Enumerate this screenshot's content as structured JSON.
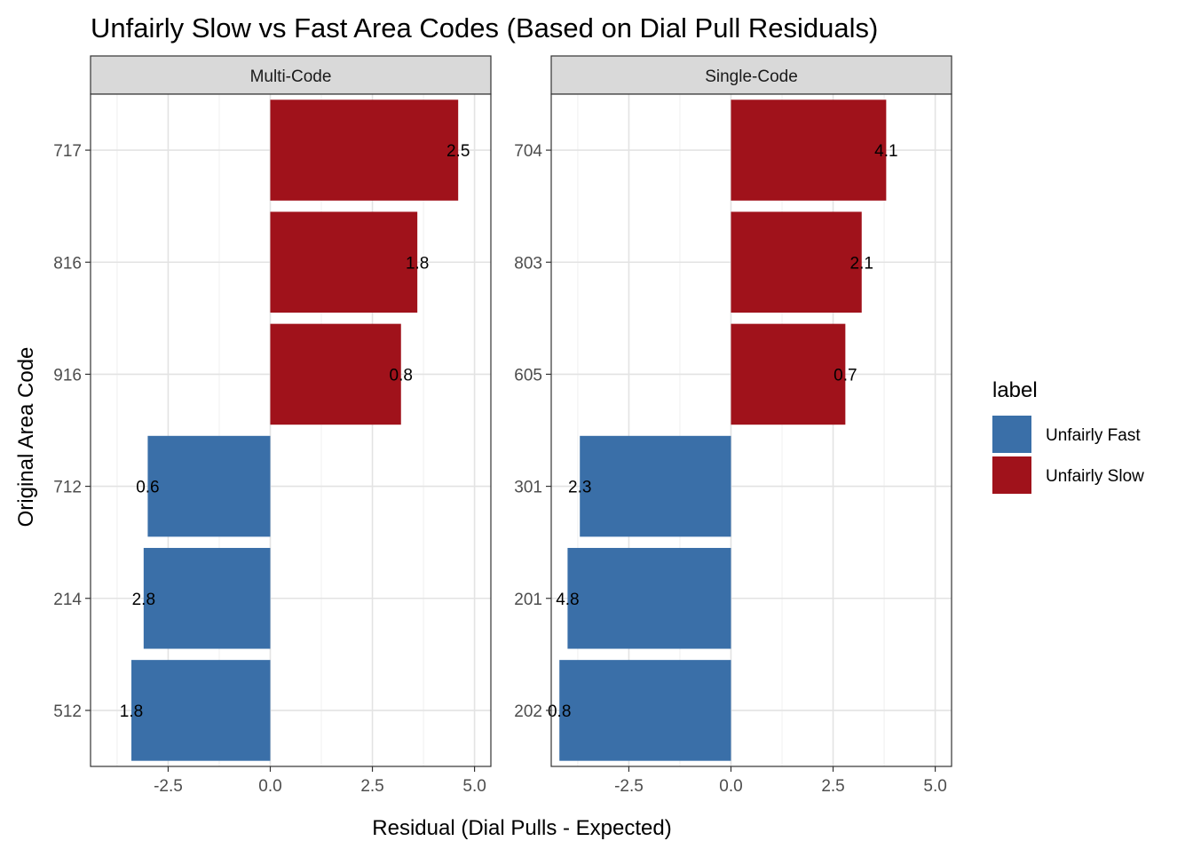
{
  "chart_data": {
    "type": "bar",
    "orientation": "horizontal",
    "title": "Unfairly Slow vs Fast Area Codes (Based on Dial Pull Residuals)",
    "xlabel": "Residual (Dial Pulls - Expected)",
    "ylabel": "Original Area Code",
    "xlim": [
      -4.4,
      5.4
    ],
    "x_ticks": [
      -2.5,
      0.0,
      2.5,
      5.0
    ],
    "x_tick_labels": [
      "-2.5",
      "0.0",
      "2.5",
      "5.0"
    ],
    "grid": true,
    "legend": {
      "title": "label",
      "position": "right",
      "entries": [
        {
          "name": "Unfairly Fast",
          "color": "#3A6FA8"
        },
        {
          "name": "Unfairly Slow",
          "color": "#A0121B"
        }
      ]
    },
    "facets": [
      {
        "strip": "Multi-Code",
        "categories": [
          "717",
          "816",
          "916",
          "712",
          "214",
          "512"
        ],
        "values": [
          4.6,
          3.6,
          3.2,
          -3.0,
          -3.1,
          -3.4
        ],
        "labels": [
          "2.5",
          "1.8",
          "0.8",
          "0.6",
          "2.8",
          "1.8"
        ],
        "groups": [
          "Unfairly Slow",
          "Unfairly Slow",
          "Unfairly Slow",
          "Unfairly Fast",
          "Unfairly Fast",
          "Unfairly Fast"
        ]
      },
      {
        "strip": "Single-Code",
        "categories": [
          "704",
          "803",
          "605",
          "301",
          "201",
          "202"
        ],
        "values": [
          3.8,
          3.2,
          2.8,
          -3.7,
          -4.0,
          -4.2
        ],
        "labels": [
          "4.1",
          "2.1",
          "0.7",
          "2.3",
          "4.8",
          "0.8"
        ],
        "groups": [
          "Unfairly Slow",
          "Unfairly Slow",
          "Unfairly Slow",
          "Unfairly Fast",
          "Unfairly Fast",
          "Unfairly Fast"
        ]
      }
    ]
  }
}
